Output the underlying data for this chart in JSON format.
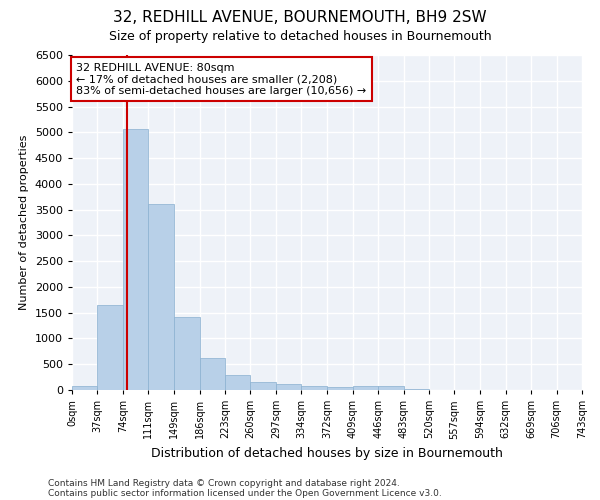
{
  "title": "32, REDHILL AVENUE, BOURNEMOUTH, BH9 2SW",
  "subtitle": "Size of property relative to detached houses in Bournemouth",
  "xlabel": "Distribution of detached houses by size in Bournemouth",
  "ylabel": "Number of detached properties",
  "bar_color": "#b8d0e8",
  "bar_edge_color": "#8ab0d0",
  "background_color": "#eef2f8",
  "grid_color": "#ffffff",
  "bin_edges": [
    0,
    37,
    74,
    111,
    149,
    186,
    223,
    260,
    297,
    334,
    372,
    409,
    446,
    483,
    520,
    557,
    594,
    632,
    669,
    706,
    743
  ],
  "bin_labels": [
    "0sqm",
    "37sqm",
    "74sqm",
    "111sqm",
    "149sqm",
    "186sqm",
    "223sqm",
    "260sqm",
    "297sqm",
    "334sqm",
    "372sqm",
    "409sqm",
    "446sqm",
    "483sqm",
    "520sqm",
    "557sqm",
    "594sqm",
    "632sqm",
    "669sqm",
    "706sqm",
    "743sqm"
  ],
  "bar_heights": [
    75,
    1650,
    5060,
    3600,
    1420,
    620,
    300,
    150,
    110,
    75,
    55,
    75,
    70,
    12,
    8,
    5,
    5,
    3,
    2,
    1
  ],
  "property_size": 80,
  "property_line_color": "#cc0000",
  "annotation_text": "32 REDHILL AVENUE: 80sqm\n← 17% of detached houses are smaller (2,208)\n83% of semi-detached houses are larger (10,656) →",
  "annotation_box_color": "#ffffff",
  "annotation_box_edge_color": "#cc0000",
  "ylim": [
    0,
    6500
  ],
  "yticks": [
    0,
    500,
    1000,
    1500,
    2000,
    2500,
    3000,
    3500,
    4000,
    4500,
    5000,
    5500,
    6000,
    6500
  ],
  "footnote1": "Contains HM Land Registry data © Crown copyright and database right 2024.",
  "footnote2": "Contains public sector information licensed under the Open Government Licence v3.0."
}
